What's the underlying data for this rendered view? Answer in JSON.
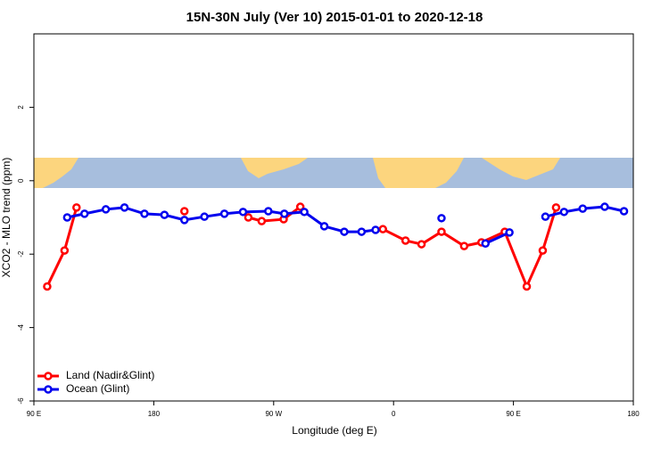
{
  "chart_data": {
    "type": "line",
    "title": "15N-30N July (Ver 10)   2015-01-01 to 2020-12-18",
    "x_label": "Longitude (deg E)",
    "y_label": "XCO2 - MLO trend (ppm)",
    "xlim": [
      90,
      540
    ],
    "xticks": [
      {
        "value": 90,
        "label": "90 E"
      },
      {
        "value": 180,
        "label": "180"
      },
      {
        "value": 270,
        "label": "90 W"
      },
      {
        "value": 360,
        "label": "0"
      },
      {
        "value": 450,
        "label": "90 E"
      },
      {
        "value": 540,
        "label": "180"
      }
    ],
    "ylim": [
      -6,
      4
    ],
    "yticks": [
      -6,
      -4,
      -2,
      0,
      2
    ],
    "legend": "bottom-left",
    "series": [
      {
        "name": "Land (Nadir&Glint)",
        "color": "#ff0000",
        "x": [
          100,
          113,
          122,
          null,
          203,
          null,
          251,
          261,
          277.5,
          290,
          null,
          352,
          369,
          381,
          396,
          413,
          426,
          443.5,
          460,
          472,
          482
        ],
        "values": [
          -2.88,
          -1.9,
          -0.73,
          null,
          -0.83,
          null,
          -1.0,
          -1.1,
          -1.05,
          -0.71,
          null,
          -1.32,
          -1.63,
          -1.73,
          -1.39,
          -1.78,
          -1.68,
          -1.39,
          -2.88,
          -1.9,
          -0.73
        ]
      },
      {
        "name": "Ocean (Glint)",
        "color": "#0000ee",
        "x": [
          115,
          128,
          144,
          158,
          173,
          188,
          203,
          218,
          233,
          247,
          266,
          278,
          293,
          308,
          323,
          336,
          346.5,
          null,
          396,
          null,
          429,
          447,
          null,
          474,
          488,
          502,
          518.5,
          533
        ],
        "values": [
          -1.0,
          -0.9,
          -0.78,
          -0.73,
          -0.9,
          -0.93,
          -1.07,
          -0.98,
          -0.9,
          -0.85,
          -0.83,
          -0.9,
          -0.85,
          -1.24,
          -1.39,
          -1.39,
          -1.34,
          null,
          -1.02,
          null,
          -1.71,
          -1.41,
          null,
          -0.98,
          -0.85,
          -0.76,
          -0.71,
          -0.83
        ]
      }
    ]
  }
}
